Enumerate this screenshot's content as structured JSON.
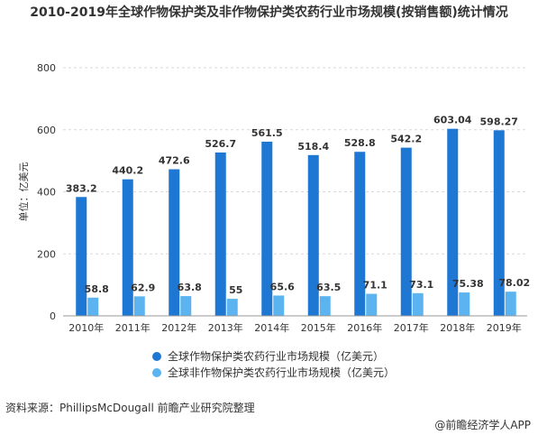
{
  "chart_data": {
    "type": "bar",
    "title": "2010-2019年全球作物保护类及非作物保护类农药行业市场规模(按销售额)统计情况",
    "ylabel": "单位：亿美元",
    "xlabel": "",
    "ylim": [
      0,
      800
    ],
    "yticks": [
      "0",
      "200",
      "400",
      "600",
      "800"
    ],
    "categories": [
      "2010年",
      "2011年",
      "2012年",
      "2013年",
      "2014年",
      "2015年",
      "2016年",
      "2017年",
      "2018年",
      "2019年"
    ],
    "series": [
      {
        "name": "全球作物保护类农药行业市场规模（亿美元）",
        "color": "#1f77d4",
        "values": [
          383.2,
          440.2,
          472.6,
          526.7,
          561.5,
          518.4,
          528.8,
          542.2,
          603.04,
          598.27
        ],
        "labels": [
          "383.2",
          "440.2",
          "472.6",
          "526.7",
          "561.5",
          "518.4",
          "528.8",
          "542.2",
          "603.04",
          "598.27"
        ]
      },
      {
        "name": "全球非作物保护类农药行业市场规模（亿美元）",
        "color": "#5bb4f0",
        "values": [
          58.8,
          62.9,
          63.8,
          55,
          65.6,
          63.5,
          71.1,
          73.1,
          75.38,
          78.02
        ],
        "labels": [
          "58.8",
          "62.9",
          "63.8",
          "55",
          "65.6",
          "63.5",
          "71.1",
          "73.1",
          "75.38",
          "78.02"
        ]
      }
    ],
    "grid": true,
    "legend": "bottom"
  },
  "source": "资料来源：PhillipsMcDougall 前瞻产业研究院整理",
  "brand": "@前瞻经济学人APP",
  "watermark": "前瞻产业研究院"
}
